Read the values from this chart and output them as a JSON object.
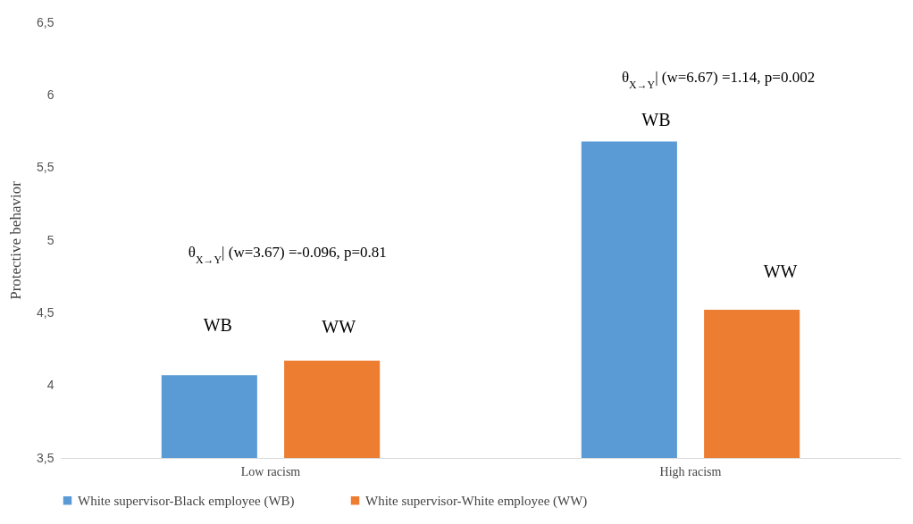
{
  "chart_data": {
    "type": "bar",
    "ylabel": "Protective behavior",
    "categories": [
      "Low racism",
      "High racism"
    ],
    "series": [
      {
        "name": "White supervisor-Black employee (WB)",
        "color": "#5b9bd5",
        "values": [
          4.07,
          5.68
        ]
      },
      {
        "name": "White supervisor-White employee (WW)",
        "color": "#ed7d31",
        "values": [
          4.17,
          4.52
        ]
      }
    ],
    "ylim": [
      3.5,
      6.5
    ],
    "yticks": [
      {
        "value": 3.5,
        "label": "3,5"
      },
      4,
      {
        "value": 4.5,
        "label": "4,5"
      },
      5,
      {
        "value": 5.5,
        "label": "5,5"
      },
      6,
      {
        "value": 6.5,
        "label": "6,5"
      }
    ],
    "grid": false,
    "legend": "bottom",
    "annotations": [
      "WB",
      "WW",
      "WB",
      "WW",
      "θ$_{X→Y}$| (w=3.67) =-0.096, p=0.81",
      "θ$_{X→Y}$| (w=6.67) =1.14, p=0.002"
    ]
  }
}
